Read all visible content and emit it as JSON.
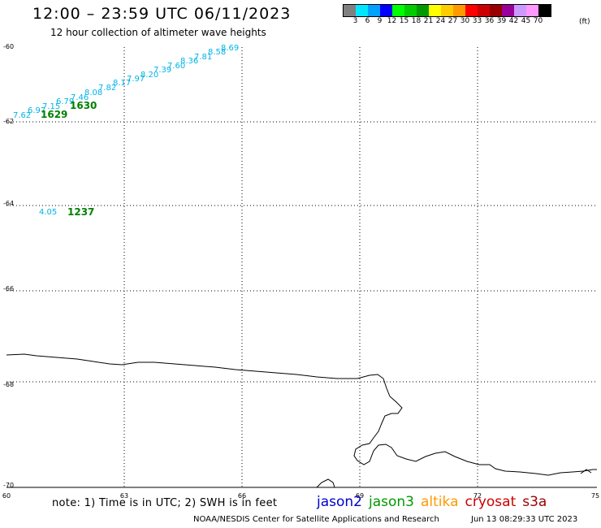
{
  "header": {
    "title": "12:00 – 23:59 UTC 06/11/2023",
    "subtitle": "12 hour collection of altimeter wave heights"
  },
  "legend": {
    "unit": "(ft)",
    "items": [
      {
        "label": "3",
        "color": "#808080"
      },
      {
        "label": "6",
        "color": "#00e6ff"
      },
      {
        "label": "9",
        "color": "#00a0ff"
      },
      {
        "label": "12",
        "color": "#0000ff"
      },
      {
        "label": "15",
        "color": "#00ff00"
      },
      {
        "label": "18",
        "color": "#00cc00"
      },
      {
        "label": "21",
        "color": "#009900"
      },
      {
        "label": "24",
        "color": "#ffff00"
      },
      {
        "label": "27",
        "color": "#ffcc00"
      },
      {
        "label": "30",
        "color": "#ff9900"
      },
      {
        "label": "33",
        "color": "#ff0000"
      },
      {
        "label": "36",
        "color": "#cc0000"
      },
      {
        "label": "39",
        "color": "#990000"
      },
      {
        "label": "42",
        "color": "#990099"
      },
      {
        "label": "45",
        "color": "#cc99ff"
      },
      {
        "label": "70",
        "color": "#ff99ff"
      },
      {
        "label": "",
        "color": "#000000"
      }
    ]
  },
  "map": {
    "lon_ticks": [
      "60",
      "63",
      "66",
      "69",
      "72",
      "75"
    ],
    "lat_ticks": [
      "-60",
      "-62",
      "-64",
      "-66",
      "-68",
      "-70"
    ],
    "wave_labels": [
      "7.62",
      "6.97",
      "7.15",
      "6.79",
      "7.46",
      "8.08",
      "7.82",
      "8.17",
      "7.97",
      "8.20",
      "7.39",
      "7.60",
      "8.36",
      "7.81",
      "8.58",
      "8.69",
      "4.05"
    ],
    "time_labels": [
      "1629",
      "1630",
      "1237"
    ],
    "wave_color": "#00b4e6",
    "time_color": "#008000"
  },
  "footer": {
    "note": "note:  1) Time is in UTC;  2) SWH is in feet",
    "missions": [
      {
        "label": "jason2",
        "color": "#0000cc"
      },
      {
        "label": "jason3",
        "color": "#009900"
      },
      {
        "label": "altika",
        "color": "#ff9900"
      },
      {
        "label": "cryosat",
        "color": "#cc0000"
      },
      {
        "label": "s3a",
        "color": "#990000"
      }
    ],
    "credit": "NOAA/NESDIS Center for Satellite Applications and Research",
    "timestamp": "Jun 13 08:29:33 UTC 2023"
  }
}
